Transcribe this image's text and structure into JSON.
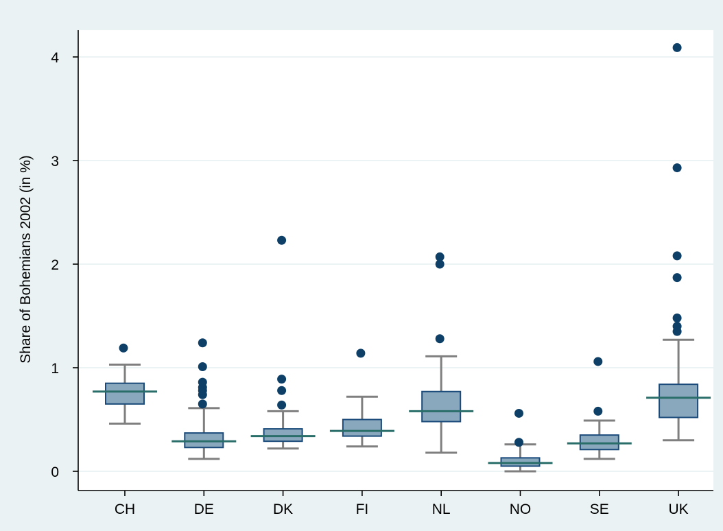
{
  "chart_data": {
    "type": "box",
    "title": "",
    "ylabel": "Share of Bohemians 2002 (in %)",
    "xlabel": "",
    "ylim": [
      -0.18,
      4.27
    ],
    "yticks": [
      0,
      1,
      2,
      3,
      4
    ],
    "ytick_labels": [
      "0",
      "1",
      "2",
      "3",
      "4"
    ],
    "grid": true,
    "categories": [
      "CH",
      "DE",
      "DK",
      "FI",
      "NL",
      "NO",
      "SE",
      "UK"
    ],
    "boxes": [
      {
        "category": "CH",
        "whisker_low": 0.46,
        "q1": 0.65,
        "median": 0.77,
        "q3": 0.85,
        "whisker_high": 1.03,
        "outliers": [
          1.19
        ]
      },
      {
        "category": "DE",
        "whisker_low": 0.12,
        "q1": 0.23,
        "median": 0.29,
        "q3": 0.37,
        "whisker_high": 0.61,
        "outliers": [
          0.65,
          0.74,
          0.78,
          0.81,
          0.86,
          1.01,
          1.24
        ]
      },
      {
        "category": "DK",
        "whisker_low": 0.22,
        "q1": 0.29,
        "median": 0.34,
        "q3": 0.41,
        "whisker_high": 0.58,
        "outliers": [
          0.64,
          0.78,
          0.89,
          2.23
        ]
      },
      {
        "category": "FI",
        "whisker_low": 0.24,
        "q1": 0.34,
        "median": 0.39,
        "q3": 0.5,
        "whisker_high": 0.72,
        "outliers": [
          1.14
        ]
      },
      {
        "category": "NL",
        "whisker_low": 0.18,
        "q1": 0.48,
        "median": 0.58,
        "q3": 0.77,
        "whisker_high": 1.11,
        "outliers": [
          1.28,
          2.0,
          2.07
        ]
      },
      {
        "category": "NO",
        "whisker_low": 0.0,
        "q1": 0.05,
        "median": 0.08,
        "q3": 0.13,
        "whisker_high": 0.26,
        "outliers": [
          0.28,
          0.56
        ]
      },
      {
        "category": "SE",
        "whisker_low": 0.12,
        "q1": 0.21,
        "median": 0.27,
        "q3": 0.35,
        "whisker_high": 0.49,
        "outliers": [
          0.58,
          1.06
        ]
      },
      {
        "category": "UK",
        "whisker_low": 0.3,
        "q1": 0.52,
        "median": 0.71,
        "q3": 0.84,
        "whisker_high": 1.27,
        "outliers": [
          1.35,
          1.4,
          1.48,
          1.87,
          2.08,
          2.93,
          4.09
        ]
      }
    ],
    "colors": {
      "box_fill": "#8aa8bd",
      "box_edge": "#1a4a7a",
      "median": "#2a6e6a",
      "whisker": "#7f7f7f",
      "outlier": "#0e3f66",
      "background": "#eaf2f3",
      "plot_background": "#ffffff"
    }
  }
}
